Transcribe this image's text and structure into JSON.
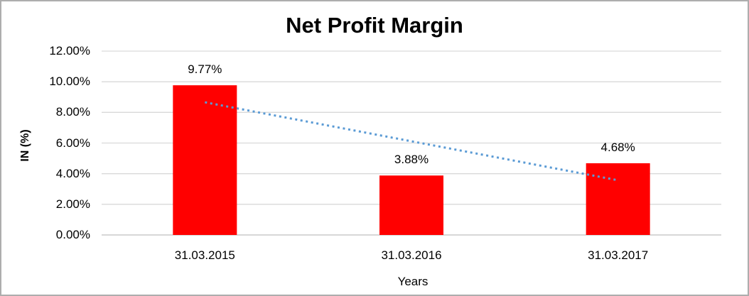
{
  "chart_data": {
    "type": "bar",
    "title": "Net Profit Margin",
    "xlabel": "Years",
    "ylabel": "IN (%)",
    "categories": [
      "31.03.2015",
      "31.03.2016",
      "31.03.2017"
    ],
    "values": [
      9.77,
      3.88,
      4.68
    ],
    "data_labels": [
      "9.77%",
      "3.88%",
      "4.68%"
    ],
    "y_ticks": [
      {
        "value": 12,
        "label": "12.00%"
      },
      {
        "value": 10,
        "label": "10.00%"
      },
      {
        "value": 8,
        "label": "8.00%"
      },
      {
        "value": 6,
        "label": "6.00%"
      },
      {
        "value": 4,
        "label": "4.00%"
      },
      {
        "value": 2,
        "label": "2.00%"
      },
      {
        "value": 0,
        "label": "0.00%"
      }
    ],
    "ylim": [
      0,
      12
    ],
    "grid": true,
    "legend": "none",
    "bar_color": "#ff0000",
    "trendline": {
      "type": "linear",
      "style": "dotted",
      "color": "#5b9bd5",
      "start_value": 8.66,
      "end_value": 3.57
    }
  },
  "colors": {
    "background": "#ffffff",
    "frame_border": "#adadad",
    "gridline": "#d9d9d9",
    "axis_line": "#bfbfbf",
    "text": "#000000"
  }
}
